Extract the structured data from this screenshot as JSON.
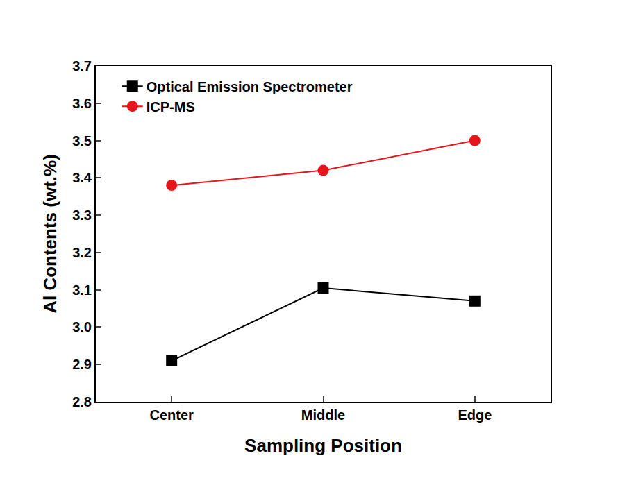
{
  "chart_data": {
    "type": "line",
    "x_label": "Sampling Position",
    "y_label": "Al Contents (wt.%)",
    "categories": [
      "Center",
      "Middle",
      "Edge"
    ],
    "series": [
      {
        "name": "Optical Emission Spectrometer",
        "color": "#000000",
        "marker": "square",
        "line_style": "solid",
        "values": [
          2.91,
          3.105,
          3.07
        ]
      },
      {
        "name": "ICP-MS",
        "color": "#e8141c",
        "marker": "circle",
        "line_style": "solid",
        "values": [
          3.38,
          3.42,
          3.5
        ]
      }
    ],
    "ylim": [
      2.8,
      3.7
    ],
    "yticks": [
      2.8,
      2.9,
      {
        "value": 3,
        "label": "3.0"
      },
      3.1,
      3.2,
      3.3,
      3.4,
      3.5,
      3.6,
      3.7
    ],
    "grid": false,
    "legend": "upper left"
  }
}
